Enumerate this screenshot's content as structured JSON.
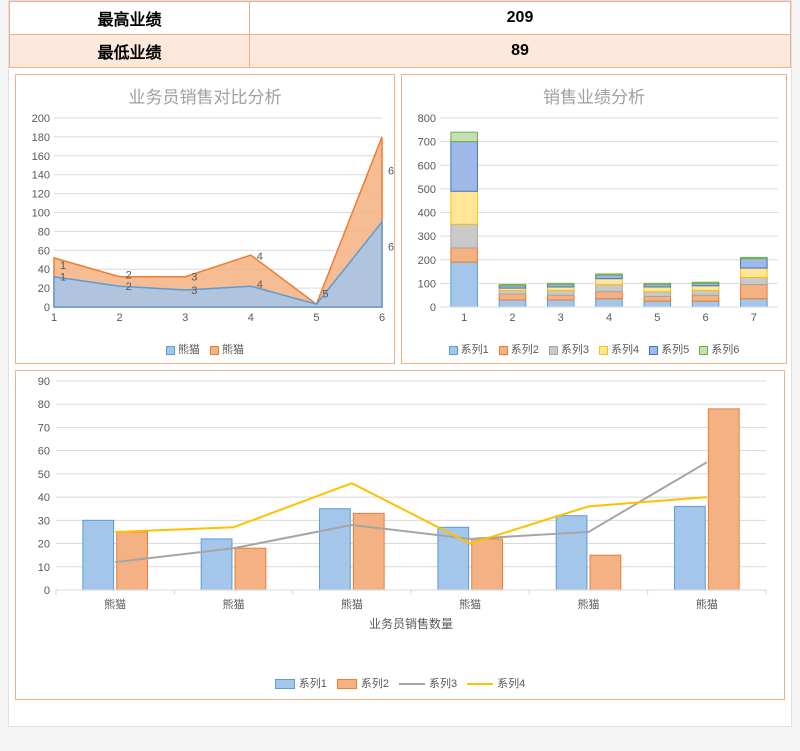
{
  "header_table": {
    "rows": [
      {
        "label": "最高业绩",
        "value": "209"
      },
      {
        "label": "最低业绩",
        "value": "89"
      }
    ]
  },
  "colors": {
    "blue": "#5b9bd5",
    "blue_fill": "#a4c6ea",
    "orange": "#ed7d31",
    "orange_fill": "#f4b183",
    "grey": "#a5a5a5",
    "grey_fill": "#c9c9c9",
    "yellow": "#ffc000",
    "yellow_fill": "#ffe699",
    "green": "#70ad47",
    "green_fill": "#c5e0b4",
    "darkblue": "#4472c4",
    "darkblue_fill": "#9fb9e8",
    "grid": "#d9d9d9",
    "text": "#595959"
  },
  "chart_area": {
    "title": "业务员销售对比分析",
    "type": "area",
    "x_labels": [
      "1",
      "2",
      "3",
      "4",
      "5",
      "6"
    ],
    "series": [
      {
        "name": "熊猫",
        "color": "#5b9bd5",
        "fill": "#a4c6ea",
        "data": [
          32,
          22,
          18,
          22,
          3,
          90
        ]
      },
      {
        "name": "熊猫",
        "color": "#ed7d31",
        "fill": "#f4b183",
        "data": [
          52,
          32,
          32,
          55,
          3,
          180
        ]
      }
    ],
    "data_labels": [
      {
        "x": 1,
        "y": 40,
        "t": "1"
      },
      {
        "x": 1,
        "y": 28,
        "t": "1"
      },
      {
        "x": 2,
        "y": 30,
        "t": "2"
      },
      {
        "x": 2,
        "y": 18,
        "t": "2"
      },
      {
        "x": 3,
        "y": 28,
        "t": "3"
      },
      {
        "x": 3,
        "y": 14,
        "t": "3"
      },
      {
        "x": 4,
        "y": 50,
        "t": "4"
      },
      {
        "x": 4,
        "y": 20,
        "t": "4"
      },
      {
        "x": 5,
        "y": 10,
        "t": "5"
      },
      {
        "x": 6,
        "y": 140,
        "t": "6"
      },
      {
        "x": 6,
        "y": 60,
        "t": "6"
      }
    ],
    "y_max": 200,
    "y_step": 20
  },
  "chart_stacked": {
    "title": "销售业绩分析",
    "type": "stacked-bar",
    "x_labels": [
      "1",
      "2",
      "3",
      "4",
      "5",
      "6",
      "7"
    ],
    "series_names": [
      "系列1",
      "系列2",
      "系列3",
      "系列4",
      "系列5",
      "系列6"
    ],
    "series_colors": [
      {
        "fill": "#a4c6ea",
        "stroke": "#5b9bd5"
      },
      {
        "fill": "#f4b183",
        "stroke": "#ed7d31"
      },
      {
        "fill": "#c9c9c9",
        "stroke": "#a5a5a5"
      },
      {
        "fill": "#ffe699",
        "stroke": "#ffc000"
      },
      {
        "fill": "#9fb9e8",
        "stroke": "#4472c4"
      },
      {
        "fill": "#c5e0b4",
        "stroke": "#70ad47"
      }
    ],
    "stacks": [
      [
        190,
        60,
        100,
        140,
        210,
        40
      ],
      [
        30,
        25,
        15,
        10,
        10,
        5
      ],
      [
        30,
        20,
        20,
        15,
        10,
        5
      ],
      [
        35,
        30,
        30,
        25,
        15,
        5
      ],
      [
        25,
        20,
        20,
        20,
        10,
        5
      ],
      [
        25,
        25,
        20,
        20,
        10,
        5
      ],
      [
        35,
        60,
        30,
        40,
        40,
        5
      ]
    ],
    "y_max": 800,
    "y_step": 100
  },
  "chart_combo": {
    "type": "bar-line-combo",
    "x_labels": [
      "熊猫",
      "熊猫",
      "熊猫",
      "熊猫",
      "熊猫",
      "熊猫"
    ],
    "x_axis_title": "业务员销售数量",
    "series": [
      {
        "name": "系列1",
        "type": "bar",
        "color": "#a4c6ea",
        "stroke": "#5b9bd5",
        "data": [
          30,
          22,
          35,
          27,
          32,
          36
        ]
      },
      {
        "name": "系列2",
        "type": "bar",
        "color": "#f4b183",
        "stroke": "#ed7d31",
        "data": [
          25,
          18,
          33,
          22,
          15,
          78
        ]
      },
      {
        "name": "系列3",
        "type": "line",
        "color": "#a5a5a5",
        "data": [
          12,
          18,
          28,
          22,
          25,
          55
        ]
      },
      {
        "name": "系列4",
        "type": "line",
        "color": "#ffc000",
        "data": [
          25,
          27,
          46,
          20,
          36,
          40
        ]
      }
    ],
    "y_max": 90,
    "y_step": 10
  }
}
